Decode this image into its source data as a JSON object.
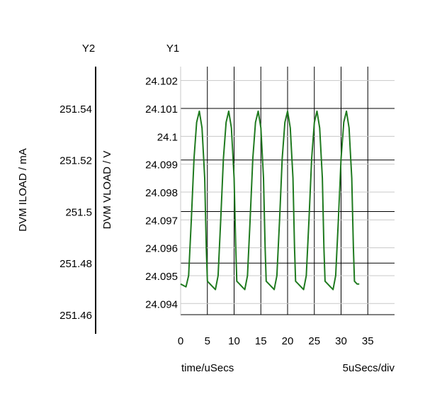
{
  "chart_data": {
    "type": "line",
    "y1_axis_title": "Y1",
    "y2_axis_title": "Y2",
    "y1_label": "DVM VLOAD / V",
    "y2_label": "DVM ILOAD / mA",
    "xlabel": "time/uSecs",
    "x_scale_note": "5uSecs/div",
    "xlim": [
      0,
      40
    ],
    "x_ticks": [
      "0",
      "5",
      "10",
      "15",
      "20",
      "25",
      "30",
      "35"
    ],
    "ylim": [
      24.0936,
      24.1025
    ],
    "y1_ticks": [
      "24.094",
      "24.095",
      "24.096",
      "24.097",
      "24.098",
      "24.099",
      "24.1",
      "24.101",
      "24.102"
    ],
    "y2_ticks": [
      "251.46",
      "251.48",
      "251.5",
      "251.52",
      "251.54"
    ],
    "grid": true,
    "line_color": "#1f7a1f",
    "series": [
      {
        "x": [
          0,
          1,
          1.5,
          2,
          2.5,
          3,
          3.5,
          4,
          4.5,
          4.8,
          5,
          5.5,
          6,
          6.5,
          7,
          7.5,
          8,
          8.5,
          9,
          9.5,
          10,
          10.3,
          10.5,
          11,
          11.5,
          12,
          12.5,
          13,
          13.5,
          14,
          14.5,
          15,
          15.5,
          15.8,
          16,
          16.5,
          17,
          17.5,
          18,
          18.5,
          19,
          19.5,
          20,
          20.5,
          21,
          21.3,
          21.5,
          22,
          22.5,
          23,
          23.5,
          24,
          24.5,
          25,
          25.5,
          26,
          26.5,
          26.8,
          27,
          27.5,
          28,
          28.5,
          29,
          29.5,
          30,
          30.5,
          31,
          31.5,
          32,
          32.3,
          32.5,
          33,
          33.4
        ],
        "y": [
          24.0947,
          24.0946,
          24.095,
          24.097,
          24.0992,
          24.1005,
          24.1009,
          24.1003,
          24.0985,
          24.096,
          24.0948,
          24.0947,
          24.0946,
          24.0945,
          24.095,
          24.097,
          24.0992,
          24.1005,
          24.1009,
          24.1003,
          24.0985,
          24.096,
          24.0948,
          24.0947,
          24.0946,
          24.0945,
          24.095,
          24.097,
          24.0992,
          24.1005,
          24.1009,
          24.1003,
          24.0985,
          24.096,
          24.0948,
          24.0947,
          24.0946,
          24.0945,
          24.095,
          24.097,
          24.0992,
          24.1005,
          24.1009,
          24.1003,
          24.0985,
          24.096,
          24.0948,
          24.0947,
          24.0946,
          24.0945,
          24.095,
          24.097,
          24.0992,
          24.1005,
          24.1009,
          24.1003,
          24.0985,
          24.096,
          24.0948,
          24.0947,
          24.0946,
          24.0945,
          24.095,
          24.097,
          24.0992,
          24.1005,
          24.1009,
          24.1003,
          24.0985,
          24.096,
          24.0948,
          24.0947,
          24.0947
        ]
      }
    ]
  }
}
